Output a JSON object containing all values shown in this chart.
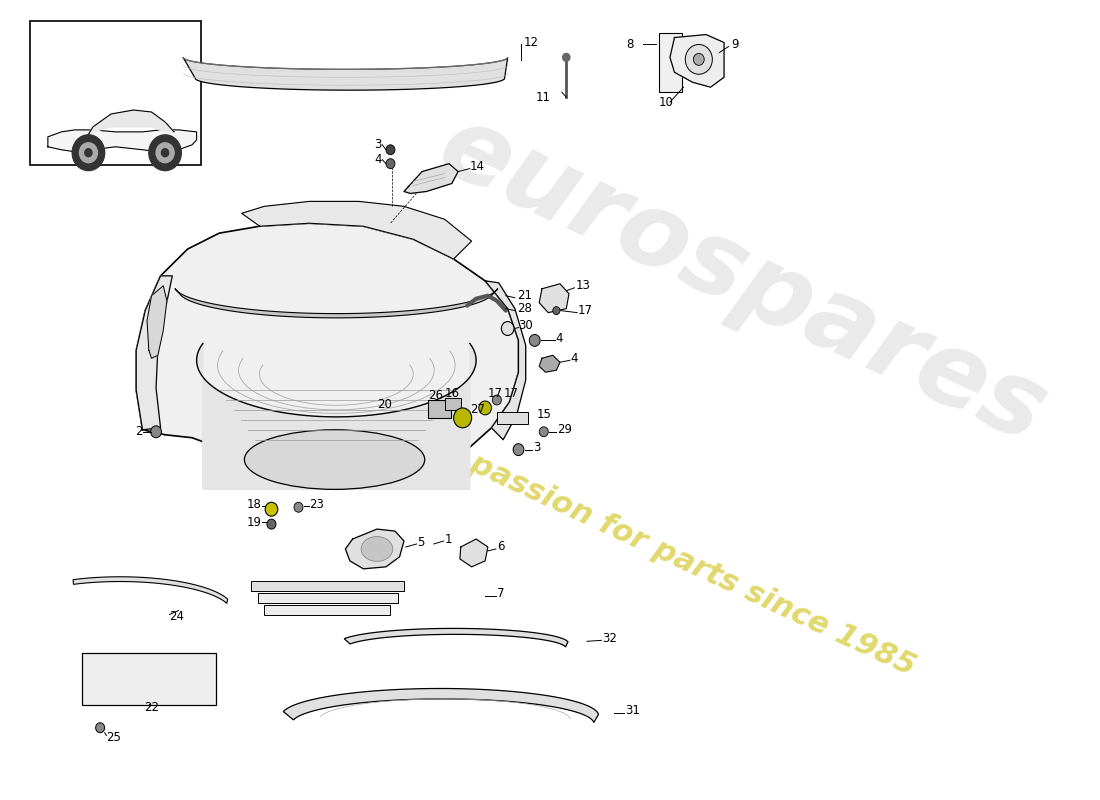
{
  "bg": "#ffffff",
  "lc": "#000000",
  "wm1": "eurospares",
  "wm2": "a passion for parts since 1985",
  "wm1_color": "#d0d0d0",
  "wm2_color": "#d4c830",
  "fill_light": "#eeeeee",
  "fill_mid": "#e0e0e0",
  "fill_dark": "#cccccc",
  "label_fs": 8.5
}
